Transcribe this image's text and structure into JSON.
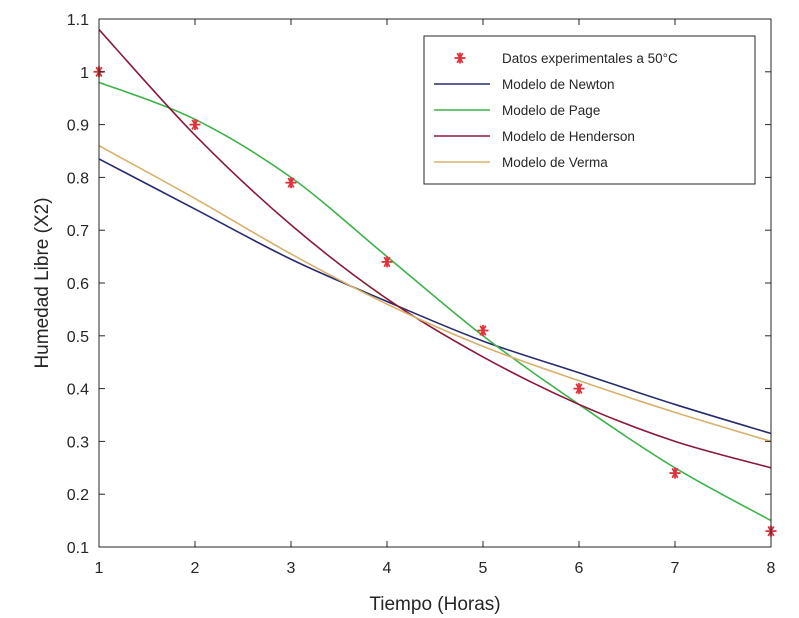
{
  "chart_data": {
    "type": "line",
    "xlabel": "Tiempo (Horas)",
    "ylabel": "Humedad Libre (X2)",
    "xlim": [
      1,
      8
    ],
    "ylim": [
      0.1,
      1.1
    ],
    "xticks": [
      1,
      2,
      3,
      4,
      5,
      6,
      7,
      8
    ],
    "yticks": [
      0.1,
      0.2,
      0.3,
      0.4,
      0.5,
      0.6,
      0.7,
      0.8,
      0.9,
      1,
      1.1
    ],
    "grid": false,
    "legend_position": "top-right",
    "scatter": {
      "name": "Datos experimentales a 50°C",
      "color": "#e0303a",
      "marker": "asterisk",
      "x": [
        1,
        2,
        3,
        4,
        5,
        6,
        7,
        8
      ],
      "y": [
        1.0,
        0.9,
        0.79,
        0.64,
        0.51,
        0.4,
        0.24,
        0.13
      ]
    },
    "series": [
      {
        "name": "Modelo de Newton",
        "color": "#262b6e",
        "x": [
          1,
          2,
          3,
          4,
          5,
          6,
          7,
          8
        ],
        "y": [
          0.835,
          0.74,
          0.645,
          0.565,
          0.49,
          0.43,
          0.37,
          0.315
        ]
      },
      {
        "name": "Modelo de Page",
        "color": "#3db34a",
        "x": [
          1,
          2,
          3,
          4,
          5,
          6,
          7,
          8
        ],
        "y": [
          0.98,
          0.91,
          0.8,
          0.65,
          0.5,
          0.37,
          0.25,
          0.15
        ]
      },
      {
        "name": "Modelo de Henderson",
        "color": "#8b1a3a",
        "x": [
          1,
          2,
          3,
          4,
          5,
          6,
          7,
          8
        ],
        "y": [
          1.08,
          0.88,
          0.71,
          0.57,
          0.46,
          0.37,
          0.3,
          0.25
        ]
      },
      {
        "name": "Modelo de Verma",
        "color": "#d9b06a",
        "x": [
          1,
          2,
          3,
          4,
          5,
          6,
          7,
          8
        ],
        "y": [
          0.86,
          0.76,
          0.655,
          0.56,
          0.48,
          0.415,
          0.355,
          0.3
        ]
      }
    ]
  }
}
